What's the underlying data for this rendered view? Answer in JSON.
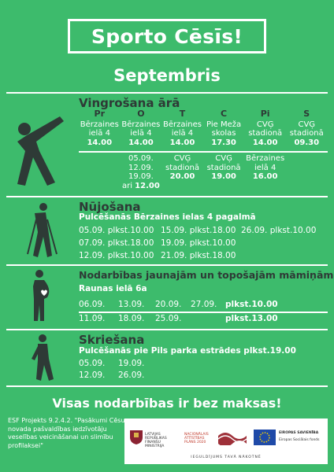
{
  "header": {
    "title": "Sporto Cēsīs!",
    "month": "Septembris"
  },
  "vingrosana": {
    "title": "Vingrošana ārā",
    "days": [
      "Pr",
      "O",
      "T",
      "C",
      "Pi",
      "S"
    ],
    "row1": [
      {
        "place1": "Bērzaines",
        "place2": "ielā 4",
        "time": "14.00"
      },
      {
        "place1": "Bērzaines",
        "place2": "ielā 4",
        "time": "14.00"
      },
      {
        "place1": "Bērzaines",
        "place2": "ielā 4",
        "time": "14.00"
      },
      {
        "place1": "Pie Meža",
        "place2": "skolas",
        "time": "17.30"
      },
      {
        "place1": "CVĢ",
        "place2": "stadionā",
        "time": "14.00"
      },
      {
        "place1": "CVĢ",
        "place2": "stadionā",
        "time": "09.30"
      }
    ],
    "row2_tue": {
      "l1": "05.09.",
      "l2": "12.09.",
      "l3": "19.09.",
      "l4": "ari",
      "time": "12.00"
    },
    "row2": [
      {
        "place1": "CVĢ",
        "place2": "stadionā",
        "time": "20.00"
      },
      {
        "place1": "CVĢ",
        "place2": "stadionā",
        "time": "19.00"
      },
      {
        "place1": "Bērzaines",
        "place2": "ielā 4",
        "time": "16.00"
      }
    ]
  },
  "nujosana": {
    "title": "Nūjošana",
    "subtitle": "Pulcēšanās Bērzaines ielas 4 pagalmā",
    "rows": [
      [
        "05.09. plkst.10.00",
        "15.09. plkst.18.00",
        "26.09. plkst.10.00"
      ],
      [
        "07.09. plkst.18.00",
        "19.09. plkst.10.00"
      ],
      [
        "12.09. plkst.10.00",
        "21.09. plkst.18.00"
      ]
    ]
  },
  "maminas": {
    "title": "Nodarbības jaunajām un topošajām māmiņām",
    "subtitle": "Raunas ielā 6a",
    "row1": {
      "dates": [
        "06.09.",
        "13.09.",
        "20.09.",
        "27.09."
      ],
      "time": "plkst.10.00"
    },
    "row2": {
      "dates": [
        "11.09.",
        "18.09.",
        "25.09."
      ],
      "time": "plkst.13.00"
    }
  },
  "skriesana": {
    "title": "Skriešana",
    "subtitle": "Pulcēšanās pie Pils parka estrādes plkst.19.00",
    "dates": [
      "05.09.",
      "19.09.",
      "12.09.",
      "26.09."
    ]
  },
  "footer": {
    "free": "Visas nodarbības ir bez maksas!",
    "esf": "ESF Projekts 9.2.4.2. \"Pasākumi Cēsu novada pašvaldības iedzīvotāju veselības veicināšanai un slimību profilaksei\"",
    "logo_ministry": "LATVIJAS REPUBLIKAS FINANŠU MINISTRIJA",
    "logo_plan": "NACIONĀLAIS ATTĪSTĪBAS PLĀNS 2020",
    "logo_eu": "EIROPAS SAVIENĪBA",
    "logo_fund": "Eiropas Sociālais fonds",
    "slogan": "IEGULDĪJUMS TAVĀ NĀKOTNĒ"
  },
  "colors": {
    "bg": "#3dbb6c",
    "dark": "#2e3a36",
    "white": "#ffffff"
  }
}
